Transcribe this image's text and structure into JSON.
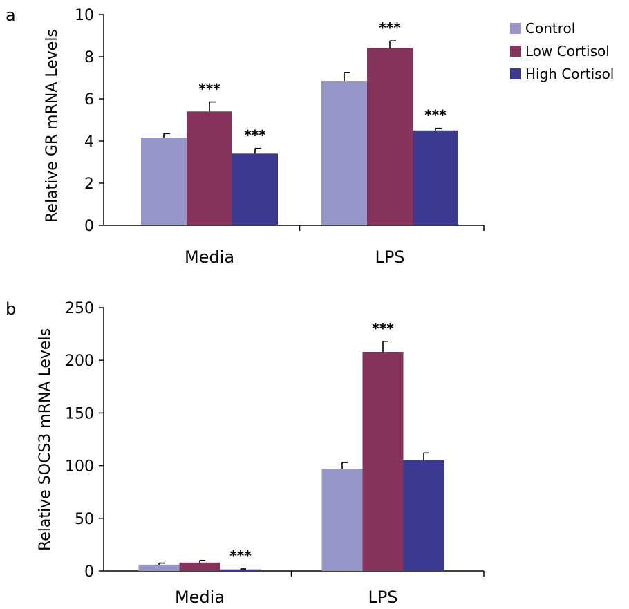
{
  "legend": [
    {
      "name": "Control",
      "color": "#9696c8"
    },
    {
      "name": "Low Cortisol",
      "color": "#85325c"
    },
    {
      "name": "High Cortisol",
      "color": "#3a3a90"
    }
  ],
  "chart_data": [
    {
      "type": "bar",
      "panel_label": "a",
      "categories": [
        "Media",
        "LPS"
      ],
      "ylabel": "Relative GR mRNA Levels",
      "ylim": [
        0,
        10
      ],
      "yticks": [
        0,
        2,
        4,
        6,
        8,
        10
      ],
      "ytick_labels": [
        "0",
        "2",
        "4",
        "6",
        "8",
        "10"
      ],
      "legend_placement": "top-right",
      "series": [
        {
          "name": "Control",
          "color": "#9696c8",
          "values": [
            4.15,
            6.85
          ],
          "errors": [
            0.2,
            0.4
          ],
          "annotations": [
            "",
            ""
          ]
        },
        {
          "name": "Low Cortisol",
          "color": "#85325c",
          "values": [
            5.4,
            8.4
          ],
          "errors": [
            0.45,
            0.35
          ],
          "annotations": [
            "***",
            "***"
          ]
        },
        {
          "name": "High Cortisol",
          "color": "#3a3a90",
          "values": [
            3.4,
            4.5
          ],
          "errors": [
            0.25,
            0.1
          ],
          "annotations": [
            "***",
            "***"
          ]
        }
      ]
    },
    {
      "type": "bar",
      "panel_label": "b",
      "categories": [
        "Media",
        "LPS"
      ],
      "ylabel": "Relative SOCS3 mRNA Levels",
      "ylim": [
        0,
        250
      ],
      "yticks": [
        0,
        50,
        100,
        150,
        200,
        250
      ],
      "ytick_labels": [
        "0",
        "50",
        "100",
        "150",
        "200",
        "250"
      ],
      "series": [
        {
          "name": "Control",
          "color": "#9696c8",
          "values": [
            6,
            97
          ],
          "errors": [
            1.5,
            6
          ],
          "annotations": [
            "",
            ""
          ]
        },
        {
          "name": "Low Cortisol",
          "color": "#85325c",
          "values": [
            8,
            208
          ],
          "errors": [
            2,
            10
          ],
          "annotations": [
            "",
            "***"
          ]
        },
        {
          "name": "High Cortisol",
          "color": "#3a3a90",
          "values": [
            1.5,
            105
          ],
          "errors": [
            0.5,
            7
          ],
          "annotations": [
            "***",
            ""
          ]
        }
      ]
    }
  ]
}
